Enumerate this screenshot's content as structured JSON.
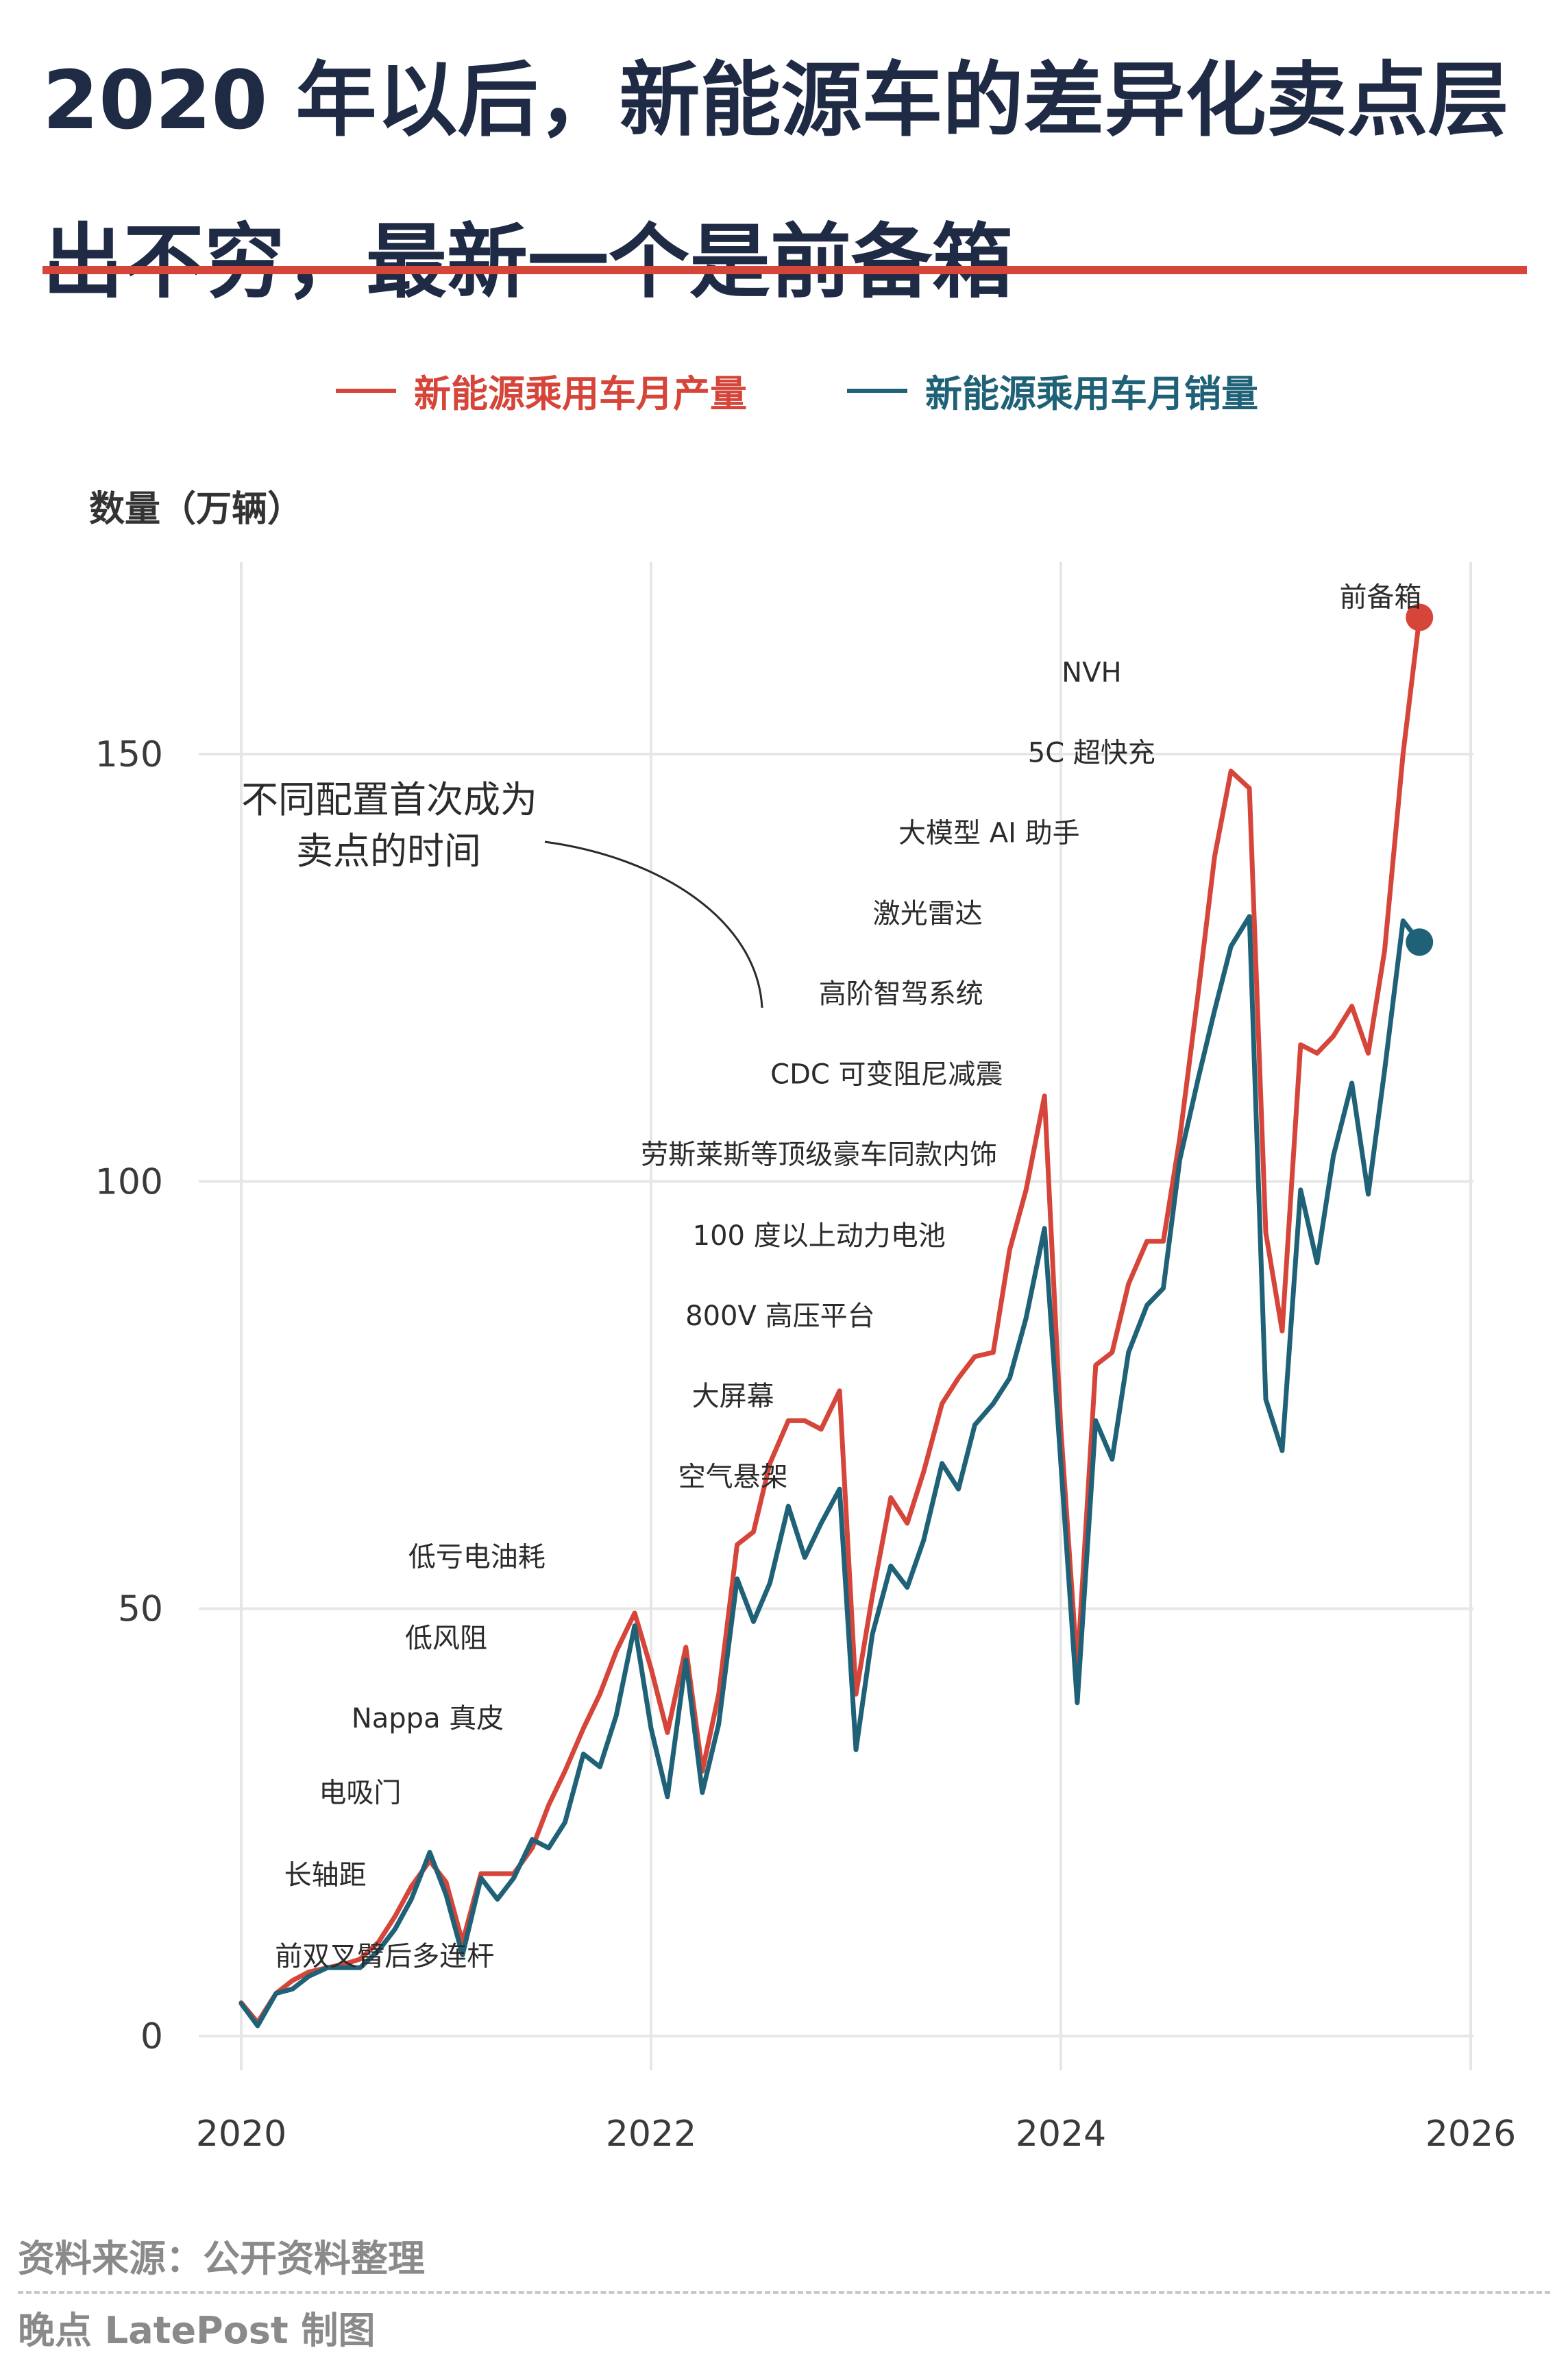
{
  "title": "2020 年以后，新能源车的差异化卖点层出不穷，最新一个是前备箱",
  "legend": {
    "production": "新能源乘用车月产量",
    "sales": "新能源乘用车月销量"
  },
  "unit_label": "数量（万辆）",
  "callout": {
    "line1": "不同配置首次成为",
    "line2": "卖点的时间"
  },
  "source": "资料来源：公开资料整理",
  "credit": "晚点 LatePost 制图",
  "colors": {
    "production": "#d6453a",
    "sales": "#1f6277",
    "title_rule": "#d6453a",
    "grid": "#e6e6e6"
  },
  "chart_data": {
    "type": "line",
    "x_unit": "year",
    "xlim": [
      2020,
      2026
    ],
    "ylim": [
      0,
      175
    ],
    "x_ticks": [
      2020,
      2022,
      2024,
      2026
    ],
    "y_ticks": [
      0,
      50,
      100,
      150
    ],
    "grid": true,
    "legend_position": "top",
    "series": [
      {
        "name": "新能源乘用车月产量",
        "color": "#d6453a",
        "points": [
          [
            2020.0,
            3.9
          ],
          [
            2020.08,
            1.6
          ],
          [
            2020.17,
            5.0
          ],
          [
            2020.25,
            6.5
          ],
          [
            2020.33,
            7.5
          ],
          [
            2020.42,
            8.0
          ],
          [
            2020.5,
            8.4
          ],
          [
            2020.58,
            9.0
          ],
          [
            2020.67,
            11.0
          ],
          [
            2020.75,
            14.0
          ],
          [
            2020.83,
            17.5
          ],
          [
            2020.92,
            20.5
          ],
          [
            2021.0,
            18.0
          ],
          [
            2021.08,
            11.0
          ],
          [
            2021.17,
            19.0
          ],
          [
            2021.25,
            19.0
          ],
          [
            2021.33,
            19.0
          ],
          [
            2021.42,
            22.0
          ],
          [
            2021.5,
            27.0
          ],
          [
            2021.58,
            31.0
          ],
          [
            2021.67,
            36.0
          ],
          [
            2021.75,
            40.0
          ],
          [
            2021.83,
            45.0
          ],
          [
            2021.92,
            49.5
          ],
          [
            2022.0,
            43.0
          ],
          [
            2022.08,
            35.5
          ],
          [
            2022.17,
            45.5
          ],
          [
            2022.25,
            31.0
          ],
          [
            2022.33,
            40.0
          ],
          [
            2022.42,
            57.5
          ],
          [
            2022.5,
            59.0
          ],
          [
            2022.58,
            67.0
          ],
          [
            2022.67,
            72.0
          ],
          [
            2022.75,
            72.0
          ],
          [
            2022.83,
            71.0
          ],
          [
            2022.92,
            75.5
          ],
          [
            2023.0,
            40.0
          ],
          [
            2023.08,
            51.5
          ],
          [
            2023.17,
            63.0
          ],
          [
            2023.25,
            60.0
          ],
          [
            2023.33,
            66.0
          ],
          [
            2023.42,
            74.0
          ],
          [
            2023.5,
            77.0
          ],
          [
            2023.58,
            79.5
          ],
          [
            2023.67,
            80.0
          ],
          [
            2023.75,
            92.0
          ],
          [
            2023.83,
            99.0
          ],
          [
            2023.92,
            110.0
          ],
          [
            2024.0,
            71.0
          ],
          [
            2024.08,
            43.0
          ],
          [
            2024.17,
            78.5
          ],
          [
            2024.25,
            80.0
          ],
          [
            2024.33,
            88.0
          ],
          [
            2024.42,
            93.0
          ],
          [
            2024.5,
            93.0
          ],
          [
            2024.58,
            105.0
          ],
          [
            2024.67,
            122.0
          ],
          [
            2024.75,
            138.0
          ],
          [
            2024.83,
            148.0
          ],
          [
            2024.92,
            146.0
          ],
          [
            2025.0,
            94.0
          ],
          [
            2025.08,
            82.5
          ],
          [
            2025.17,
            116.0
          ],
          [
            2025.25,
            115.0
          ],
          [
            2025.33,
            117.0
          ],
          [
            2025.42,
            120.5
          ],
          [
            2025.5,
            115.0
          ],
          [
            2025.58,
            127.0
          ],
          [
            2025.67,
            150.0
          ],
          [
            2025.75,
            166.0
          ]
        ]
      },
      {
        "name": "新能源乘用车月销量",
        "color": "#1f6277",
        "points": [
          [
            2020.0,
            3.8
          ],
          [
            2020.08,
            1.2
          ],
          [
            2020.17,
            5.0
          ],
          [
            2020.25,
            5.5
          ],
          [
            2020.33,
            7.0
          ],
          [
            2020.42,
            8.0
          ],
          [
            2020.5,
            8.0
          ],
          [
            2020.58,
            8.0
          ],
          [
            2020.67,
            10.0
          ],
          [
            2020.75,
            12.5
          ],
          [
            2020.83,
            16.0
          ],
          [
            2020.92,
            21.5
          ],
          [
            2021.0,
            16.5
          ],
          [
            2021.08,
            9.5
          ],
          [
            2021.17,
            18.5
          ],
          [
            2021.25,
            16.0
          ],
          [
            2021.33,
            18.5
          ],
          [
            2021.42,
            23.0
          ],
          [
            2021.5,
            22.0
          ],
          [
            2021.58,
            25.0
          ],
          [
            2021.67,
            33.0
          ],
          [
            2021.75,
            31.5
          ],
          [
            2021.83,
            37.5
          ],
          [
            2021.92,
            48.0
          ],
          [
            2022.0,
            36.0
          ],
          [
            2022.08,
            28.0
          ],
          [
            2022.17,
            44.0
          ],
          [
            2022.25,
            28.5
          ],
          [
            2022.33,
            36.5
          ],
          [
            2022.42,
            53.5
          ],
          [
            2022.5,
            48.5
          ],
          [
            2022.58,
            53.0
          ],
          [
            2022.67,
            62.0
          ],
          [
            2022.75,
            56.0
          ],
          [
            2022.83,
            60.0
          ],
          [
            2022.92,
            64.0
          ],
          [
            2023.0,
            33.5
          ],
          [
            2023.08,
            47.0
          ],
          [
            2023.17,
            55.0
          ],
          [
            2023.25,
            52.5
          ],
          [
            2023.33,
            58.0
          ],
          [
            2023.42,
            67.0
          ],
          [
            2023.5,
            64.0
          ],
          [
            2023.58,
            71.5
          ],
          [
            2023.67,
            74.0
          ],
          [
            2023.75,
            77.0
          ],
          [
            2023.83,
            84.0
          ],
          [
            2023.92,
            94.5
          ],
          [
            2024.0,
            67.0
          ],
          [
            2024.08,
            39.0
          ],
          [
            2024.17,
            72.0
          ],
          [
            2024.25,
            67.5
          ],
          [
            2024.33,
            80.0
          ],
          [
            2024.42,
            85.5
          ],
          [
            2024.5,
            87.5
          ],
          [
            2024.58,
            102.5
          ],
          [
            2024.67,
            112.0
          ],
          [
            2024.75,
            120.0
          ],
          [
            2024.83,
            127.5
          ],
          [
            2024.92,
            131.0
          ],
          [
            2025.0,
            74.5
          ],
          [
            2025.08,
            68.5
          ],
          [
            2025.17,
            99.0
          ],
          [
            2025.25,
            90.5
          ],
          [
            2025.33,
            103.0
          ],
          [
            2025.42,
            111.5
          ],
          [
            2025.5,
            98.5
          ],
          [
            2025.58,
            113.0
          ],
          [
            2025.67,
            130.5
          ],
          [
            2025.75,
            128.0
          ]
        ]
      }
    ],
    "annotations": [
      {
        "text": "前双叉臂后多连杆",
        "x": 2020.7,
        "y": 9.4
      },
      {
        "text": "长轴距",
        "x": 2020.41,
        "y": 18.9
      },
      {
        "text": "电吸门",
        "x": 2020.58,
        "y": 28.5
      },
      {
        "text": "Nappa 真皮",
        "x": 2020.91,
        "y": 37.2
      },
      {
        "text": "低风阻",
        "x": 2021.0,
        "y": 46.6
      },
      {
        "text": "低亏电油耗",
        "x": 2021.15,
        "y": 56.1
      },
      {
        "text": "空气悬架",
        "x": 2022.4,
        "y": 65.5
      },
      {
        "text": "大屏幕",
        "x": 2022.4,
        "y": 74.9
      },
      {
        "text": "800V 高压平台",
        "x": 2022.63,
        "y": 84.3
      },
      {
        "text": "100 度以上动力电池",
        "x": 2022.82,
        "y": 93.7
      },
      {
        "text": "劳斯莱斯等顶级豪车同款内饰",
        "x": 2022.82,
        "y": 103.2
      },
      {
        "text": "CDC 可变阻尼减震",
        "x": 2023.15,
        "y": 112.6
      },
      {
        "text": "高阶智驾系统",
        "x": 2023.22,
        "y": 122.0
      },
      {
        "text": "激光雷达",
        "x": 2023.35,
        "y": 131.4
      },
      {
        "text": "大模型 AI 助手",
        "x": 2023.65,
        "y": 140.8
      },
      {
        "text": "5C 超快充",
        "x": 2024.15,
        "y": 150.2
      },
      {
        "text": "NVH",
        "x": 2024.15,
        "y": 159.6
      },
      {
        "text": "前备箱",
        "x": 2025.56,
        "y": 168.4
      }
    ]
  }
}
